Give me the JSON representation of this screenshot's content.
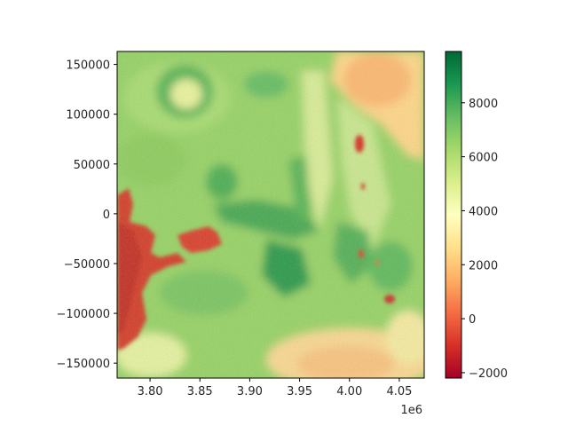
{
  "chart_data": {
    "type": "heatmap",
    "title": "",
    "xlabel": "",
    "ylabel": "",
    "x_offset_label": "1e6",
    "xlim": [
      3.767,
      4.075
    ],
    "ylim": [
      -165000,
      163000
    ],
    "x_ticks": [
      {
        "value": 3.8,
        "label": "3.80"
      },
      {
        "value": 3.85,
        "label": "3.85"
      },
      {
        "value": 3.9,
        "label": "3.90"
      },
      {
        "value": 3.95,
        "label": "3.95"
      },
      {
        "value": 4.0,
        "label": "4.00"
      },
      {
        "value": 4.05,
        "label": "4.05"
      }
    ],
    "y_ticks": [
      {
        "value": 150000,
        "label": "150000"
      },
      {
        "value": 100000,
        "label": "100000"
      },
      {
        "value": 50000,
        "label": "50000"
      },
      {
        "value": 0,
        "label": "0"
      },
      {
        "value": -50000,
        "label": "−50000"
      },
      {
        "value": -100000,
        "label": "−100000"
      },
      {
        "value": -150000,
        "label": "−150000"
      }
    ],
    "colorbar": {
      "colormap": "RdYlGn",
      "range": [
        -2200,
        9900
      ],
      "ticks": [
        {
          "value": 8000,
          "label": "8000"
        },
        {
          "value": 6000,
          "label": "6000"
        },
        {
          "value": 4000,
          "label": "4000"
        },
        {
          "value": 2000,
          "label": "2000"
        },
        {
          "value": 0,
          "label": "0"
        },
        {
          "value": -2000,
          "label": "−2000"
        }
      ]
    },
    "grid": false
  }
}
